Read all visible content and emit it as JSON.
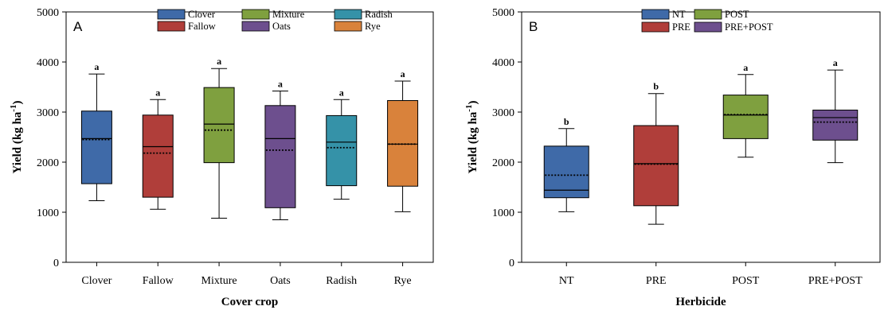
{
  "chart_data": [
    {
      "type": "box",
      "panel_label": "A",
      "xlabel": "Cover crop",
      "ylabel": "Yield (kg ha",
      "ylabel_sup": "-1",
      "ylabel_close": ")",
      "ylim": [
        0,
        5000
      ],
      "yticks": [
        0,
        1000,
        2000,
        3000,
        4000,
        5000
      ],
      "legend_position": "top-center",
      "categories": [
        "Clover",
        "Fallow",
        "Mixture",
        "Oats",
        "Radish",
        "Rye"
      ],
      "legend_order": [
        "Clover",
        "Mixture",
        "Radish",
        "Fallow",
        "Oats",
        "Rye"
      ],
      "boxes": [
        {
          "name": "Clover",
          "min": 1230,
          "q1": 1570,
          "median": 2470,
          "mean": 2450,
          "q3": 3020,
          "max": 3760,
          "letter": "a",
          "color": "#3f6aa8"
        },
        {
          "name": "Fallow",
          "min": 1060,
          "q1": 1300,
          "median": 2310,
          "mean": 2180,
          "q3": 2940,
          "max": 3250,
          "letter": "a",
          "color": "#b03e3a"
        },
        {
          "name": "Mixture",
          "min": 880,
          "q1": 1990,
          "median": 2760,
          "mean": 2640,
          "q3": 3490,
          "max": 3870,
          "letter": "a",
          "color": "#7fa03f"
        },
        {
          "name": "Oats",
          "min": 850,
          "q1": 1090,
          "median": 2470,
          "mean": 2240,
          "q3": 3130,
          "max": 3420,
          "letter": "a",
          "color": "#6d4f8e"
        },
        {
          "name": "Radish",
          "min": 1260,
          "q1": 1530,
          "median": 2400,
          "mean": 2290,
          "q3": 2930,
          "max": 3250,
          "letter": "a",
          "color": "#3592a8"
        },
        {
          "name": "Rye",
          "min": 1010,
          "q1": 1520,
          "median": 2360,
          "mean": 2360,
          "q3": 3230,
          "max": 3620,
          "letter": "a",
          "color": "#d9823b"
        }
      ]
    },
    {
      "type": "box",
      "panel_label": "B",
      "xlabel": "Herbicide",
      "ylabel": "Yield (kg ha",
      "ylabel_sup": "-1",
      "ylabel_close": ")",
      "ylim": [
        0,
        5000
      ],
      "yticks": [
        0,
        1000,
        2000,
        3000,
        4000,
        5000
      ],
      "legend_position": "top-center",
      "categories": [
        "NT",
        "PRE",
        "POST",
        "PRE+POST"
      ],
      "legend_order": [
        "NT",
        "POST",
        "PRE",
        "PRE+POST"
      ],
      "boxes": [
        {
          "name": "NT",
          "min": 1010,
          "q1": 1290,
          "median": 1440,
          "mean": 1740,
          "q3": 2320,
          "max": 2670,
          "letter": "b",
          "color": "#3f6aa8"
        },
        {
          "name": "PRE",
          "min": 760,
          "q1": 1130,
          "median": 1970,
          "mean": 1960,
          "q3": 2730,
          "max": 3370,
          "letter": "b",
          "color": "#b03e3a"
        },
        {
          "name": "POST",
          "min": 2100,
          "q1": 2470,
          "median": 2940,
          "mean": 2950,
          "q3": 3340,
          "max": 3750,
          "letter": "a",
          "color": "#7fa03f"
        },
        {
          "name": "PRE+POST",
          "min": 1990,
          "q1": 2440,
          "median": 2890,
          "mean": 2800,
          "q3": 3040,
          "max": 3840,
          "letter": "a",
          "color": "#6d4f8e"
        }
      ]
    }
  ]
}
